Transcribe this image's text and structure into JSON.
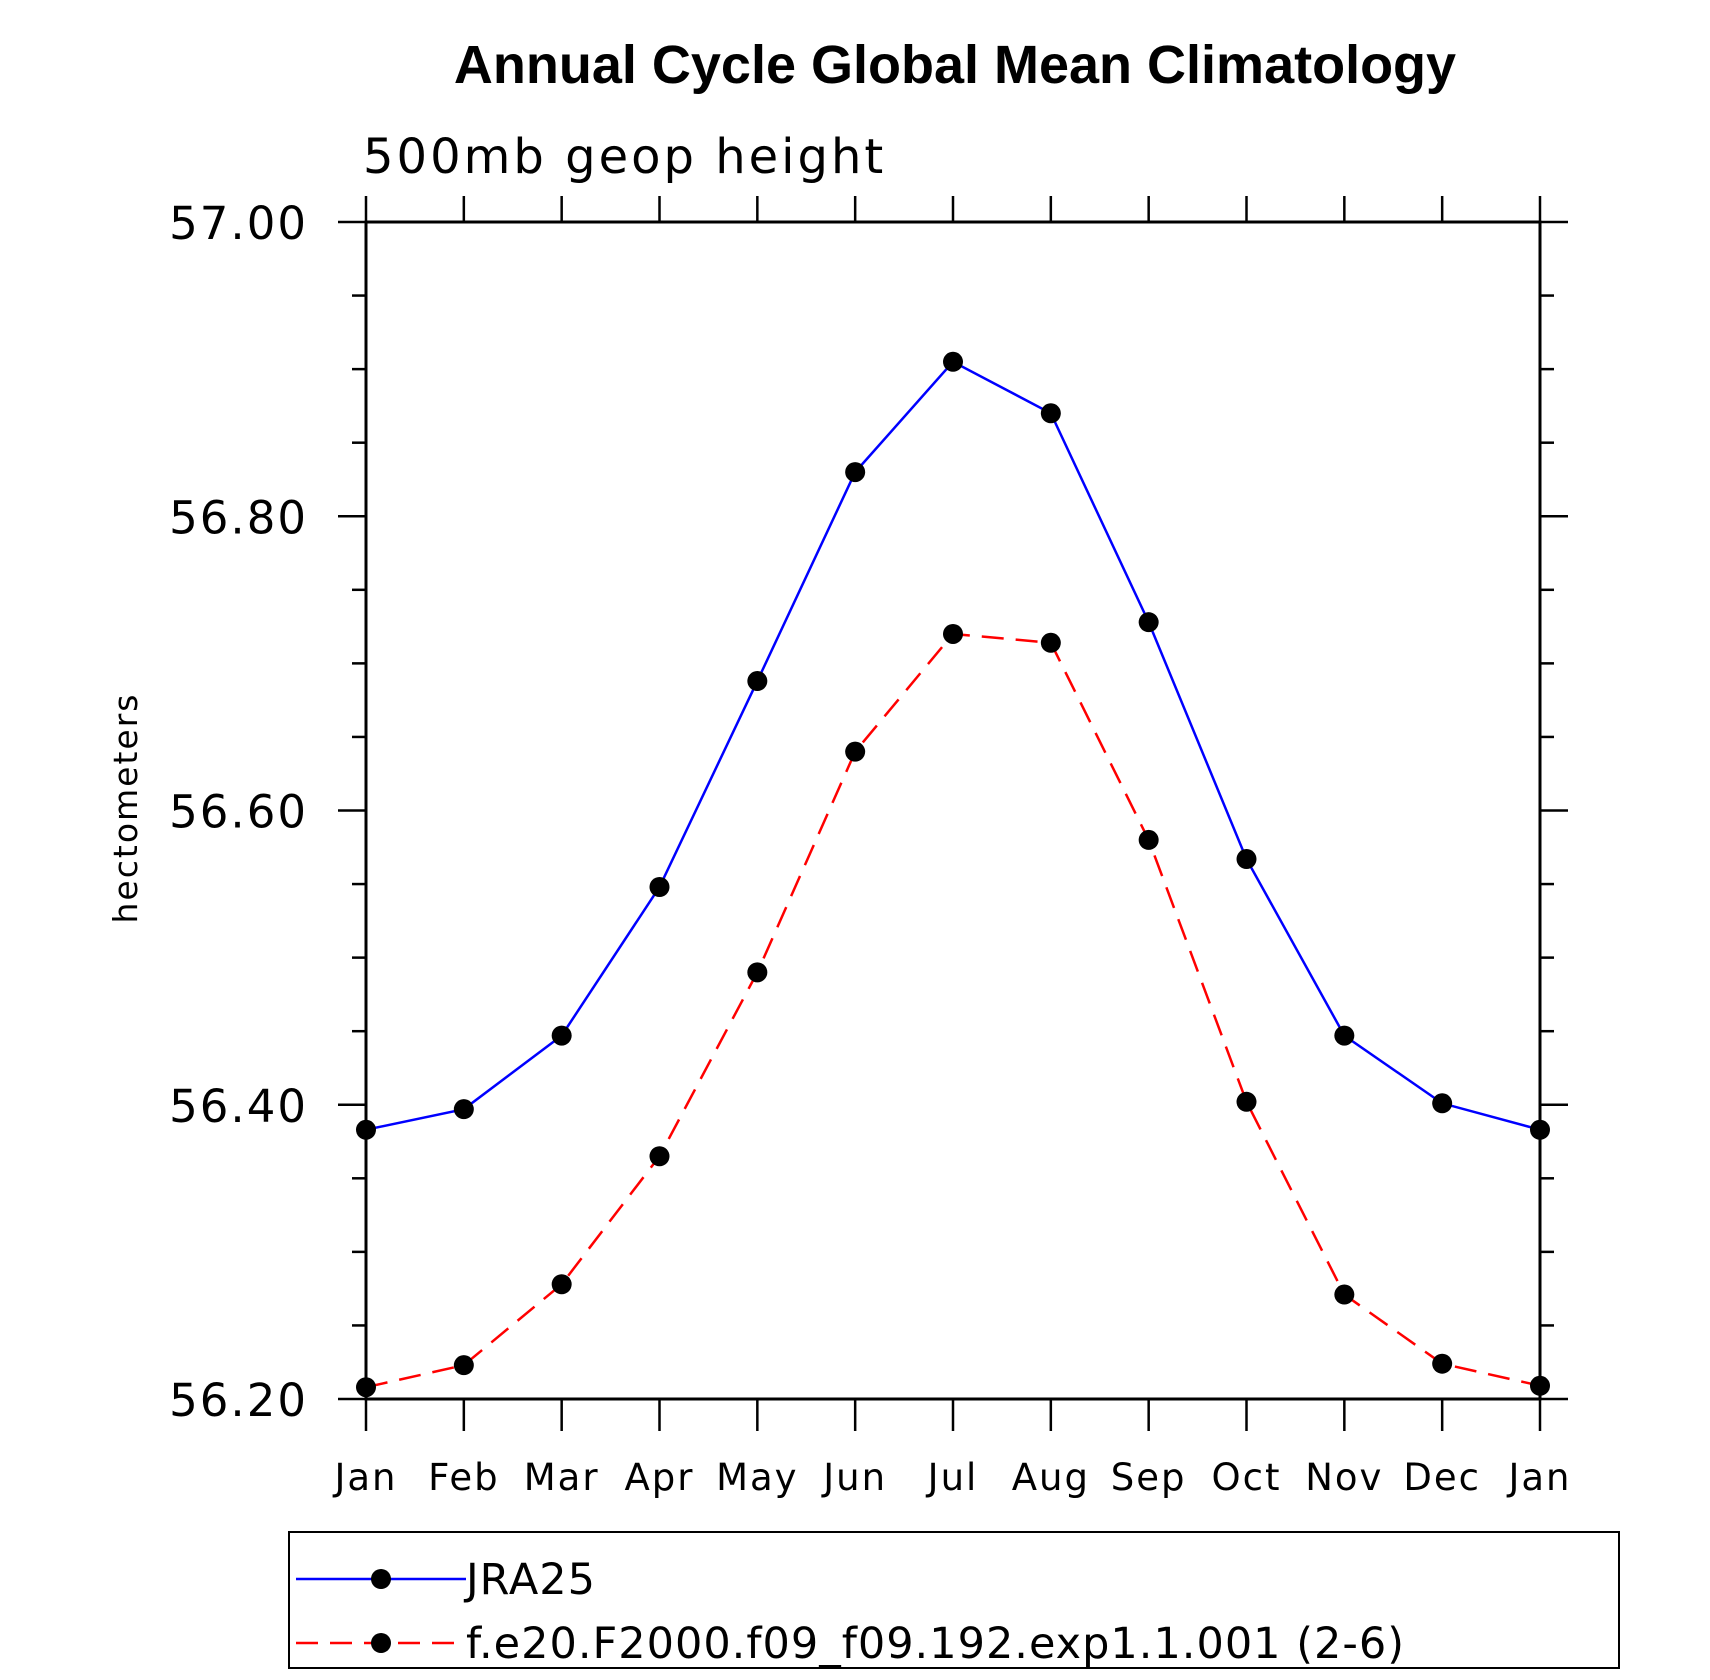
{
  "chart_data": {
    "type": "line",
    "title": "Annual Cycle Global Mean Climatology",
    "subtitle": "500mb geop height",
    "ylabel": "hectometers",
    "xlabel": "",
    "ylim": [
      56.2,
      57.0
    ],
    "yticks": [
      "57.00",
      "56.80",
      "56.60",
      "56.40",
      "56.20"
    ],
    "ytick_values": [
      57.0,
      56.8,
      56.6,
      56.4,
      56.2
    ],
    "categories": [
      "Jan",
      "Feb",
      "Mar",
      "Apr",
      "May",
      "Jun",
      "Jul",
      "Aug",
      "Sep",
      "Oct",
      "Nov",
      "Dec",
      "Jan"
    ],
    "series": [
      {
        "name": "JRA25",
        "color": "#0000ff",
        "dash": "solid",
        "values": [
          56.383,
          56.397,
          56.447,
          56.548,
          56.688,
          56.83,
          56.905,
          56.87,
          56.728,
          56.567,
          56.447,
          56.401,
          56.383
        ]
      },
      {
        "name": "f.e20.F2000.f09_f09.192.exp1.1.001 (2-6)",
        "color": "#ff0000",
        "dash": "dashed",
        "values": [
          56.208,
          56.223,
          56.278,
          56.365,
          56.49,
          56.64,
          56.72,
          56.714,
          56.58,
          56.402,
          56.271,
          56.224,
          56.209
        ]
      }
    ],
    "legend_position": "bottom",
    "grid": false
  }
}
